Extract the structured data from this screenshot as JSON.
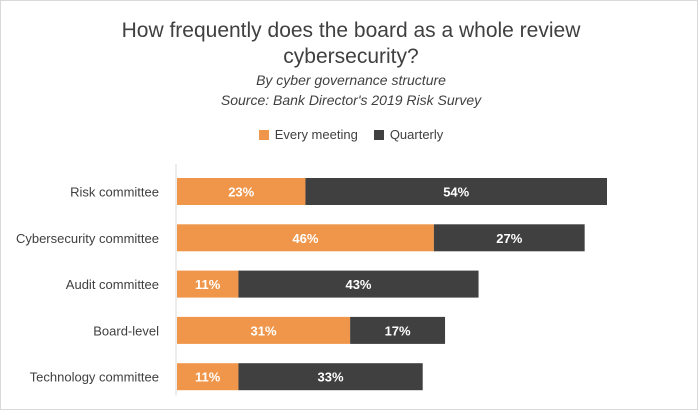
{
  "chart_data": {
    "type": "bar",
    "orientation": "horizontal",
    "stacked": true,
    "title": "How frequently does the board as a whole review cybersecurity?",
    "title_lines": [
      "How frequently does the board as a whole review",
      "cybersecurity?"
    ],
    "subtitle_lines": [
      "By cyber governance structure",
      "Source: Bank Director's 2019 Risk Survey"
    ],
    "categories": [
      "Risk committee",
      "Cybersecurity committee",
      "Audit committee",
      "Board-level",
      "Technology committee"
    ],
    "series": [
      {
        "name": "Every meeting",
        "color": "#f0964a",
        "values": [
          23,
          46,
          11,
          31,
          11
        ],
        "labels": [
          "23%",
          "46%",
          "11%",
          "31%",
          "11%"
        ]
      },
      {
        "name": "Quarterly",
        "color": "#404040",
        "values": [
          54,
          27,
          43,
          17,
          33
        ],
        "labels": [
          "54%",
          "27%",
          "43%",
          "17%",
          "33%"
        ]
      }
    ],
    "xlim": [
      0,
      77
    ],
    "legend_position": "top",
    "grid": false
  }
}
